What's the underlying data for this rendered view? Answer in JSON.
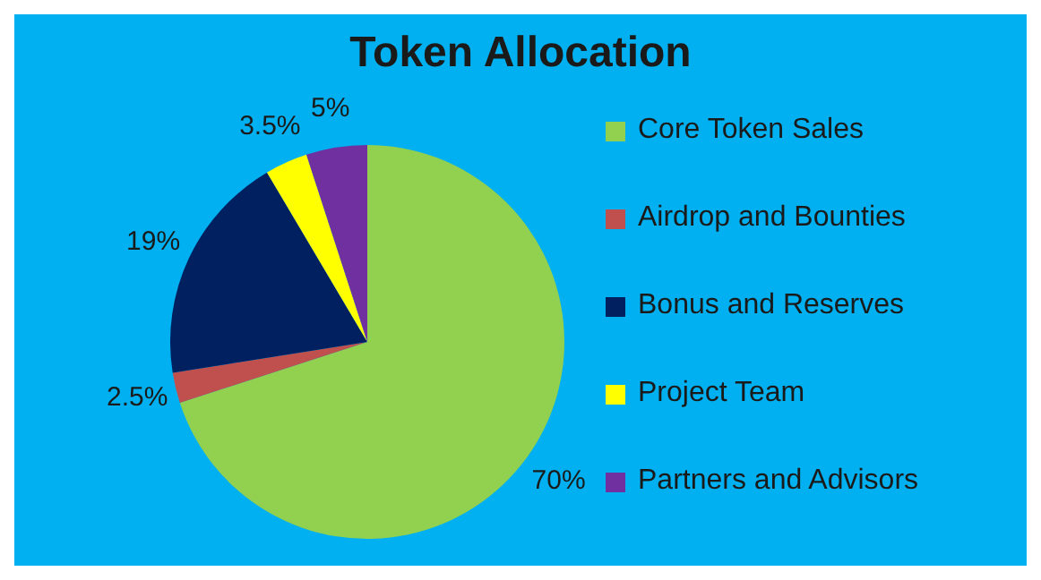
{
  "chart_data": {
    "type": "pie",
    "title": "Token Allocation",
    "categories": [
      "Core Token Sales",
      "Airdrop and Bounties",
      "Bonus and Reserves",
      "Project Team",
      "Partners and Advisors"
    ],
    "values": [
      70,
      2.5,
      19,
      3.5,
      5
    ],
    "colors": [
      "#92d050",
      "#c0504d",
      "#002060",
      "#ffff00",
      "#7030a0"
    ],
    "value_labels": [
      "70%",
      "2.5%",
      "19%",
      "3.5%",
      "5%"
    ],
    "legend": "right"
  }
}
